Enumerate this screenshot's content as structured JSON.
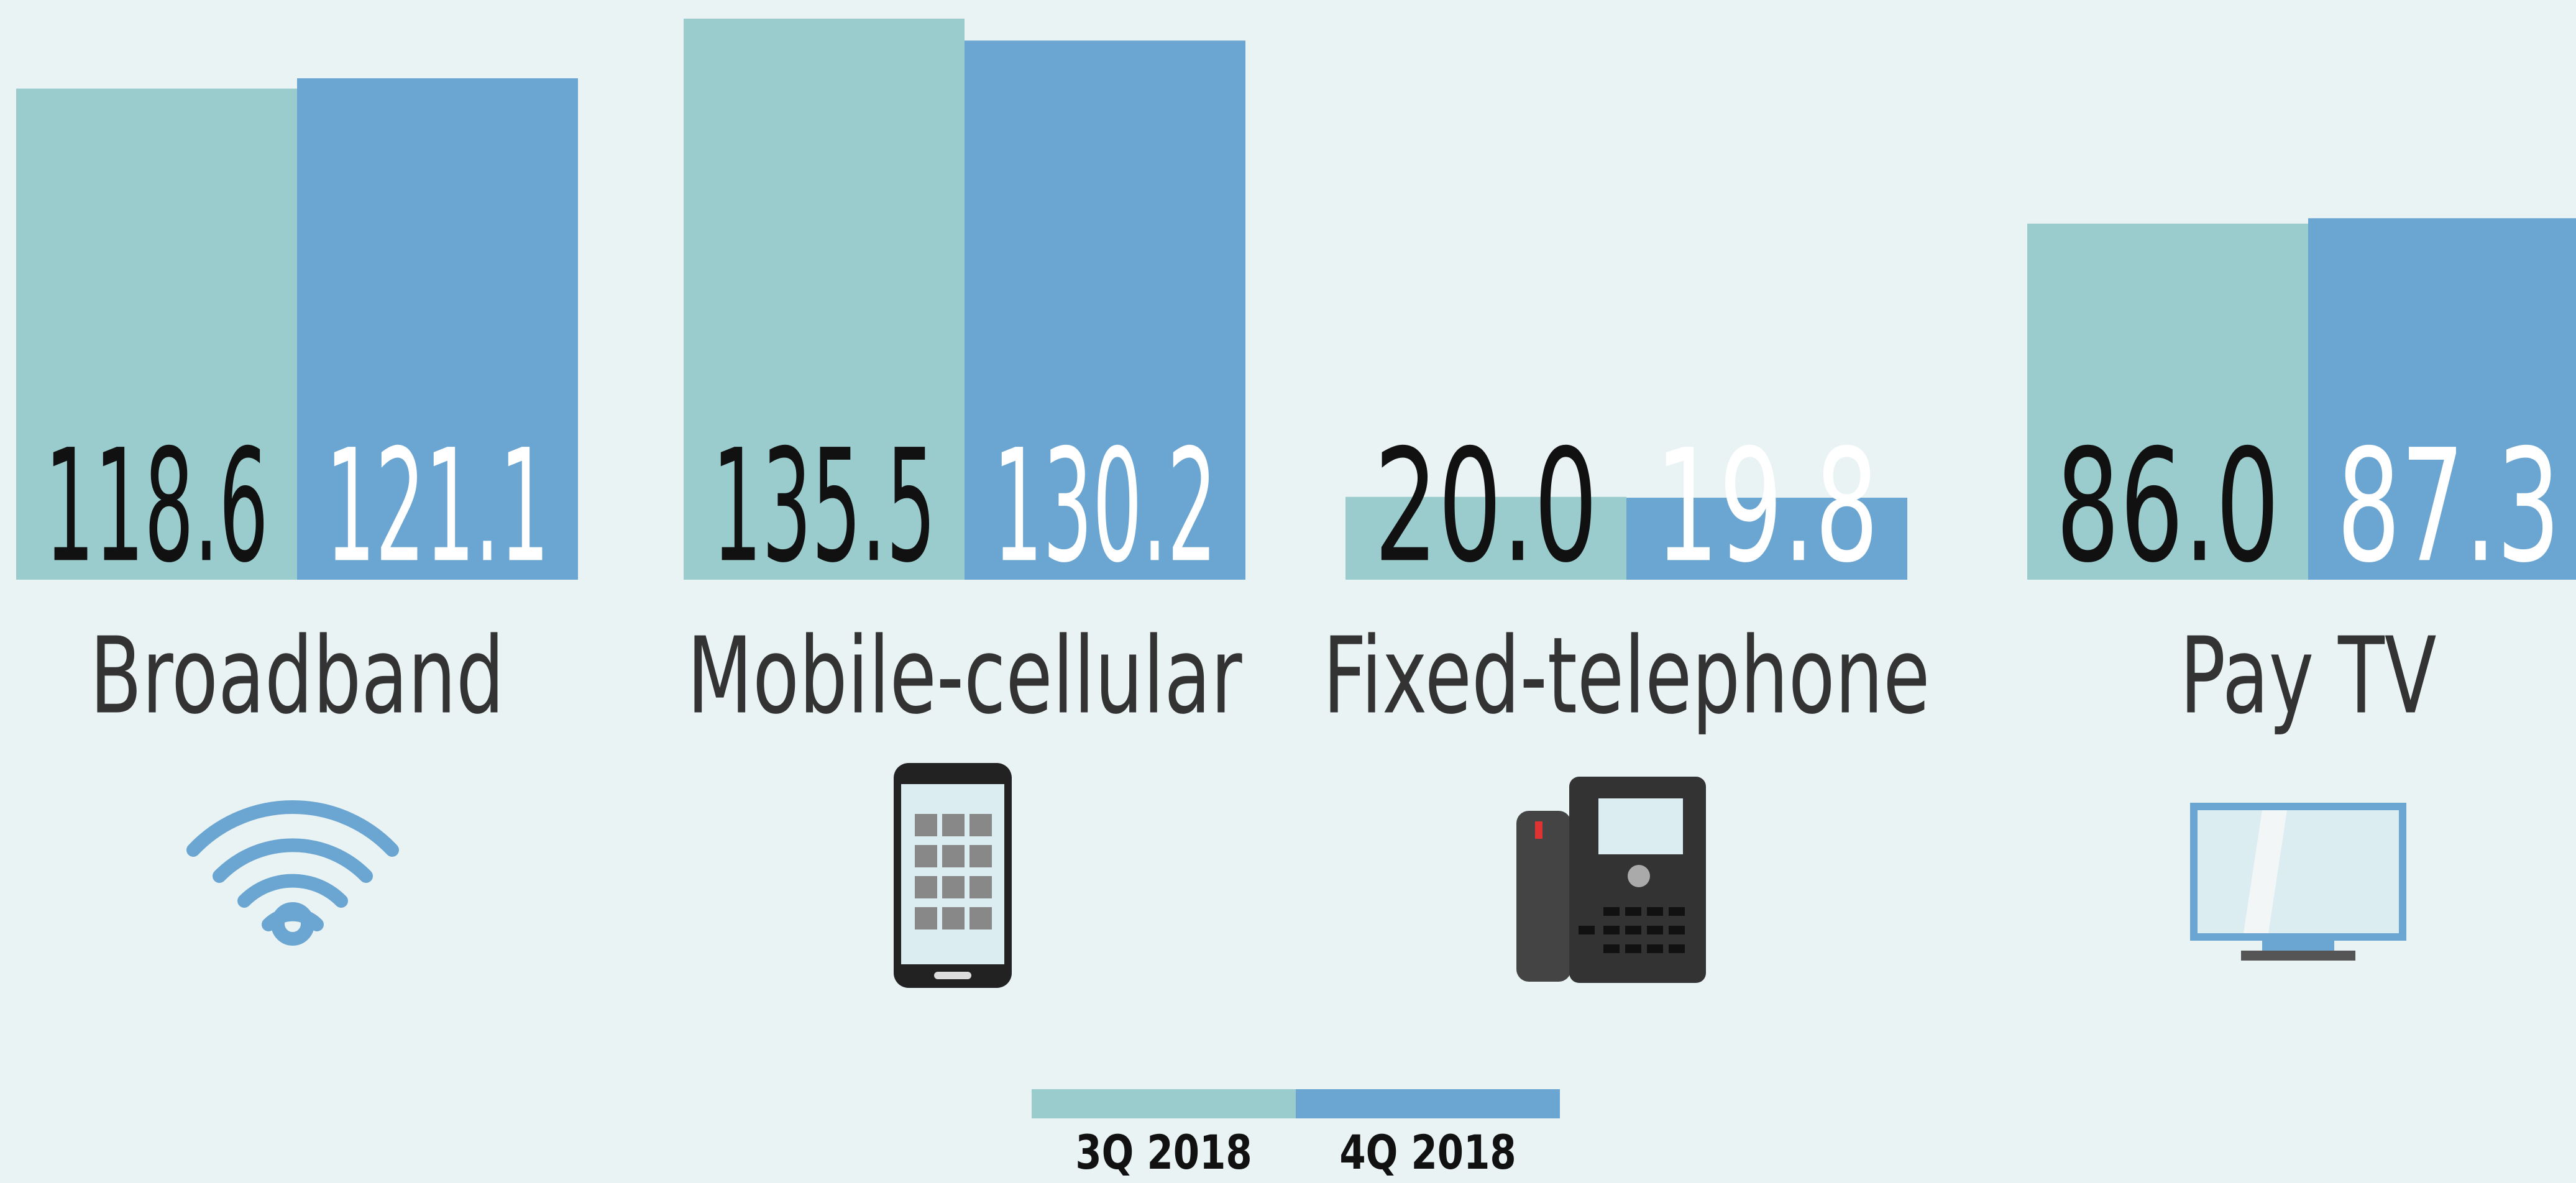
{
  "chart_data": {
    "type": "bar",
    "categories": [
      "Broadband",
      "Mobile-cellular",
      "Fixed-telephone",
      "Pay TV"
    ],
    "series": [
      {
        "name": "3Q 2018",
        "color": "#9acccd",
        "values": [
          118.6,
          135.5,
          20.0,
          86.0
        ],
        "value_labels": [
          "118.6",
          "135.5",
          "20.0",
          "86.0"
        ]
      },
      {
        "name": "4Q 2018",
        "color": "#6ba6d2",
        "values": [
          121.1,
          130.2,
          19.8,
          87.3
        ],
        "value_labels": [
          "121.1",
          "130.2",
          "19.8",
          "87.3"
        ]
      }
    ],
    "ylim": [
      0,
      140
    ]
  }
}
